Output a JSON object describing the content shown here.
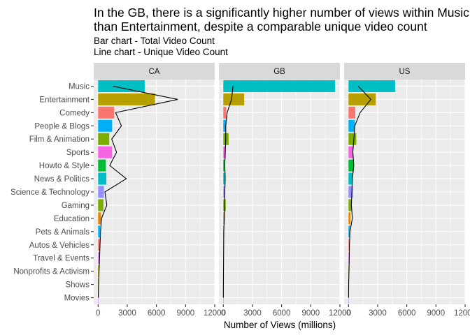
{
  "title_line1": "In the GB, there is a significantly higher number of views within Music",
  "title_line2": "than Entertainment, despite a comparable unique video count",
  "subtitle_line1": "Bar chart - Total Video Count",
  "subtitle_line2": "Line chart - Unique Video Count",
  "chart_data": {
    "type": "bar",
    "orientation": "horizontal",
    "facets": [
      "CA",
      "GB",
      "US"
    ],
    "categories": [
      "Music",
      "Entertainment",
      "Comedy",
      "People & Blogs",
      "Film & Animation",
      "Sports",
      "Howto & Style",
      "News & Politics",
      "Science & Technology",
      "Gaming",
      "Education",
      "Pets & Animals",
      "Autos & Vehicles",
      "Travel & Events",
      "Nonprofits & Activism",
      "Shows",
      "Movies"
    ],
    "category_colors": [
      "#00BFC4",
      "#B79F00",
      "#F8766D",
      "#00B0F6",
      "#7CAE00",
      "#F564E3",
      "#00BA38",
      "#00BFC4",
      "#9590FF",
      "#7CAE00",
      "#E58700",
      "#00B0F6",
      "#F8766D",
      "#E76BF3",
      "#A3A500",
      "#6BB100",
      "#C77CFF"
    ],
    "series": [
      {
        "facet": "CA",
        "kind": "bar",
        "values": [
          4800,
          5850,
          1650,
          1450,
          1150,
          1450,
          800,
          850,
          600,
          550,
          300,
          200,
          180,
          150,
          120,
          60,
          20
        ]
      },
      {
        "facet": "CA",
        "kind": "line",
        "values": [
          1500,
          8200,
          1800,
          2400,
          1400,
          1900,
          1200,
          2900,
          700,
          900,
          350,
          250,
          200,
          150,
          100,
          50,
          20
        ]
      },
      {
        "facet": "GB",
        "kind": "bar",
        "values": [
          11500,
          2150,
          300,
          300,
          550,
          250,
          150,
          200,
          150,
          250,
          150,
          80,
          60,
          40,
          30,
          10,
          5
        ]
      },
      {
        "facet": "GB",
        "kind": "line",
        "values": [
          1000,
          850,
          400,
          250,
          250,
          200,
          150,
          200,
          150,
          150,
          100,
          50,
          40,
          30,
          20,
          10,
          5
        ]
      },
      {
        "facet": "US",
        "kind": "bar",
        "values": [
          4800,
          2800,
          700,
          650,
          800,
          450,
          550,
          450,
          450,
          300,
          200,
          150,
          80,
          60,
          40,
          20,
          10
        ]
      },
      {
        "facet": "US",
        "kind": "line",
        "values": [
          1000,
          2300,
          1200,
          650,
          550,
          450,
          550,
          400,
          350,
          300,
          400,
          150,
          100,
          80,
          50,
          20,
          10
        ]
      }
    ],
    "xlabel": "Number of Views (millions)",
    "ylabel": "",
    "x_ticks": [
      "0",
      "3000",
      "6000",
      "9000",
      "12000"
    ],
    "xlim": [
      -450,
      12000
    ],
    "grid": true,
    "line_color": "#000000",
    "panel_background": "#EBEBEB",
    "strip_background": "#D9D9D9"
  }
}
